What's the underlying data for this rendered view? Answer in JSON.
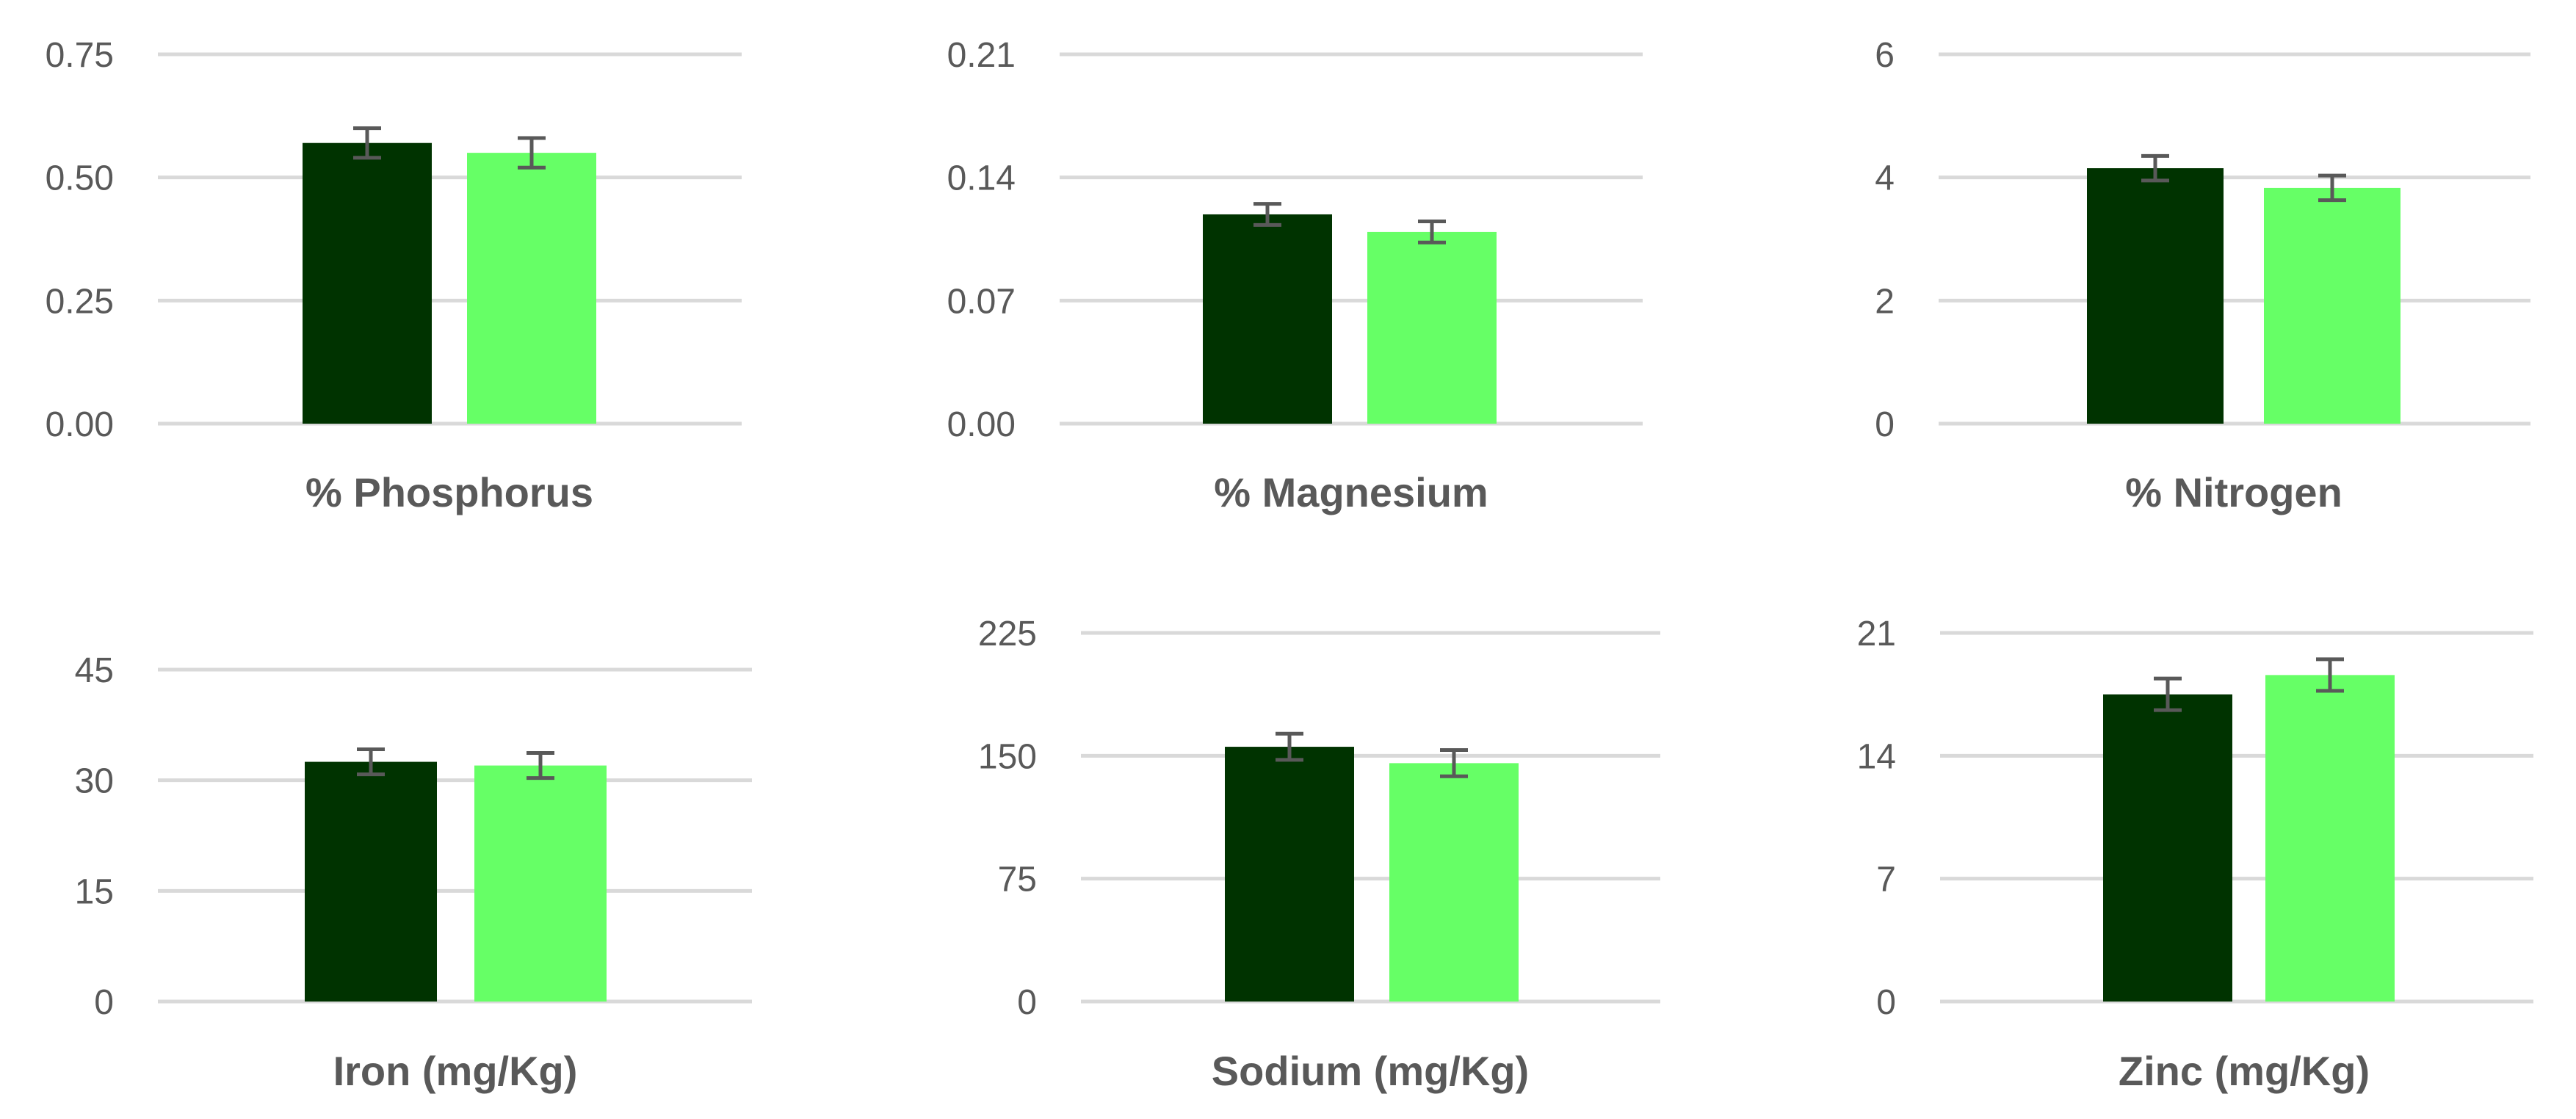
{
  "colors": {
    "series_1": "#003300",
    "series_2": "#66FF66",
    "grid": "#d9d9d9",
    "error_bar": "#595959",
    "text": "#595959"
  },
  "chart_data": [
    {
      "type": "bar",
      "title": "% Phosphorus",
      "ylim": [
        0,
        0.75
      ],
      "yticks": [
        "0.00",
        "0.25",
        "0.50",
        "0.75"
      ],
      "grid": true,
      "series": [
        {
          "values": [
            0.57
          ],
          "error": [
            0.03
          ]
        },
        {
          "values": [
            0.55
          ],
          "error": [
            0.03
          ]
        }
      ]
    },
    {
      "type": "bar",
      "title": "% Magnesium",
      "ylim": [
        0,
        0.21
      ],
      "yticks": [
        "0.00",
        "0.07",
        "0.14",
        "0.21"
      ],
      "grid": true,
      "series": [
        {
          "values": [
            0.119
          ],
          "error": [
            0.006
          ]
        },
        {
          "values": [
            0.109
          ],
          "error": [
            0.006
          ]
        }
      ]
    },
    {
      "type": "bar",
      "title": "% Nitrogen",
      "ylim": [
        0,
        6
      ],
      "yticks": [
        "0",
        "2",
        "4",
        "6"
      ],
      "grid": true,
      "series": [
        {
          "values": [
            4.15
          ],
          "error": [
            0.2
          ]
        },
        {
          "values": [
            3.83
          ],
          "error": [
            0.2
          ]
        }
      ]
    },
    {
      "type": "bar",
      "title": "Iron (mg/Kg)",
      "ylim": [
        0,
        45
      ],
      "yticks": [
        "0",
        "15",
        "30",
        "45"
      ],
      "grid": true,
      "series": [
        {
          "values": [
            32.5
          ],
          "error": [
            1.7
          ]
        },
        {
          "values": [
            32.0
          ],
          "error": [
            1.7
          ]
        }
      ]
    },
    {
      "type": "bar",
      "title": "Sodium (mg/Kg)",
      "ylim": [
        0,
        225
      ],
      "yticks": [
        "0",
        "75",
        "150",
        "225"
      ],
      "grid": true,
      "series": [
        {
          "values": [
            155.5
          ],
          "error": [
            8
          ]
        },
        {
          "values": [
            145.5
          ],
          "error": [
            8
          ]
        }
      ]
    },
    {
      "type": "bar",
      "title": "Zinc (mg/Kg)",
      "ylim": [
        0,
        21
      ],
      "yticks": [
        "0",
        "7",
        "14",
        "21"
      ],
      "grid": true,
      "series": [
        {
          "values": [
            17.5
          ],
          "error": [
            0.9
          ]
        },
        {
          "values": [
            18.6
          ],
          "error": [
            0.9
          ]
        }
      ]
    }
  ]
}
